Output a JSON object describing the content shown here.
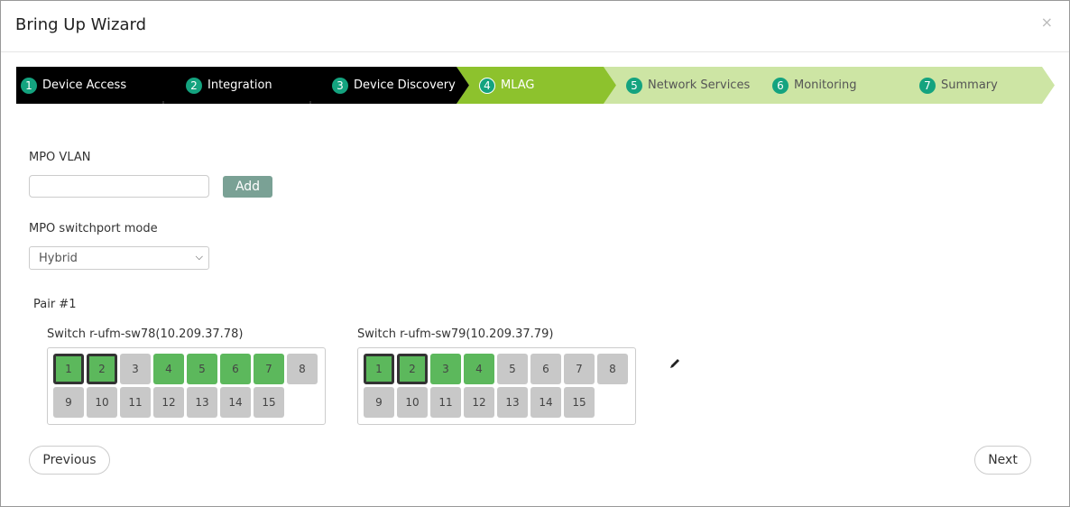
{
  "title": "Bring Up Wizard",
  "close": "×",
  "steps": [
    {
      "n": "1",
      "label": "Device Access",
      "state": "done"
    },
    {
      "n": "2",
      "label": "Integration",
      "state": "done"
    },
    {
      "n": "3",
      "label": "Device Discovery",
      "state": "done"
    },
    {
      "n": "4",
      "label": "MLAG",
      "state": "active"
    },
    {
      "n": "5",
      "label": "Network Services",
      "state": "todo"
    },
    {
      "n": "6",
      "label": "Monitoring",
      "state": "todo"
    },
    {
      "n": "7",
      "label": "Summary",
      "state": "todo"
    }
  ],
  "colors": {
    "done": "#000000",
    "active": "#8dc22d",
    "todo": "#cde5a4",
    "badge": "#14a37f",
    "port_up": "#5cb85c",
    "port_down": "#c8c8c8"
  },
  "vlan": {
    "label": "MPO VLAN",
    "value": "",
    "add": "Add"
  },
  "mode": {
    "label": "MPO switchport mode",
    "value": "Hybrid"
  },
  "pair": {
    "label": "Pair #1",
    "switches": [
      {
        "name": "Switch r-ufm-sw78(10.209.37.78)",
        "up": [
          1,
          2,
          4,
          5,
          6,
          7
        ],
        "selected": [
          1,
          2
        ]
      },
      {
        "name": "Switch r-ufm-sw79(10.209.37.79)",
        "up": [
          1,
          2,
          3,
          4
        ],
        "selected": [
          1,
          2
        ]
      }
    ],
    "edit_icon": "pencil-icon"
  },
  "nav": {
    "previous": "Previous",
    "next": "Next"
  }
}
